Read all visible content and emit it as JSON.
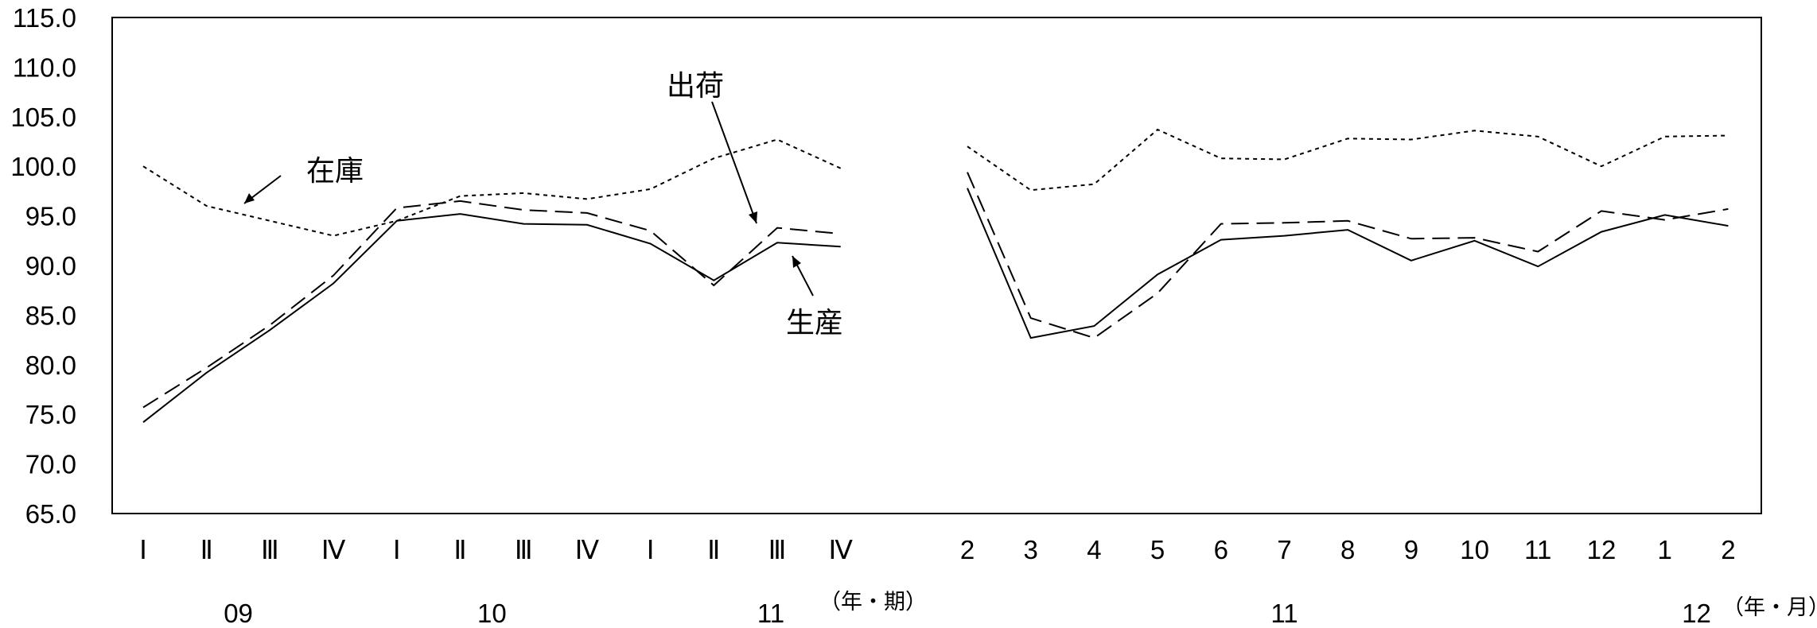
{
  "chart_data": {
    "type": "line",
    "y_ticks": [
      "115.0",
      "110.0",
      "105.0",
      "100.0",
      "95.0",
      "90.0",
      "85.0",
      "80.0",
      "75.0",
      "70.0",
      "65.0"
    ],
    "ylim": [
      65,
      115
    ],
    "grid": false,
    "quarterly": {
      "x": [
        "Ⅰ",
        "Ⅱ",
        "Ⅲ",
        "Ⅳ",
        "Ⅰ",
        "Ⅱ",
        "Ⅲ",
        "Ⅳ",
        "Ⅰ",
        "Ⅱ",
        "Ⅲ",
        "Ⅳ"
      ],
      "year_labels": [
        {
          "label": "09",
          "index": 1.5
        },
        {
          "label": "10",
          "index": 5.5
        },
        {
          "label": "11",
          "index": 9.9
        }
      ],
      "unit": "（年・期）",
      "series": [
        {
          "key": "production",
          "style": "solid",
          "values": [
            74.2,
            79.2,
            83.5,
            88.2,
            94.5,
            95.2,
            94.2,
            94.1,
            92.2,
            88.5,
            92.3,
            91.9
          ]
        },
        {
          "key": "shipments",
          "style": "dashed",
          "values": [
            75.7,
            79.7,
            84.0,
            89.0,
            95.8,
            96.5,
            95.6,
            95.3,
            93.5,
            88.0,
            93.8,
            93.2
          ]
        },
        {
          "key": "inventory",
          "style": "dotted",
          "values": [
            100.0,
            96.0,
            94.5,
            93.0,
            94.5,
            97.0,
            97.3,
            96.7,
            97.7,
            100.8,
            102.7,
            99.8
          ]
        }
      ]
    },
    "monthly": {
      "x": [
        "2",
        "3",
        "4",
        "5",
        "6",
        "7",
        "8",
        "9",
        "10",
        "11",
        "12",
        "1",
        "2"
      ],
      "year_labels": [
        {
          "label": "11",
          "index": 5
        },
        {
          "label": "12",
          "index": 11.5
        }
      ],
      "unit": "（年・月）",
      "series": [
        {
          "key": "production",
          "style": "solid",
          "values": [
            97.8,
            82.7,
            83.9,
            89.1,
            92.6,
            93.0,
            93.6,
            90.5,
            92.5,
            89.9,
            93.4,
            95.1,
            94.0
          ]
        },
        {
          "key": "shipments",
          "style": "dashed",
          "values": [
            99.4,
            84.7,
            82.7,
            87.2,
            94.2,
            94.3,
            94.5,
            92.7,
            92.8,
            91.4,
            95.5,
            94.6,
            95.7
          ]
        },
        {
          "key": "inventory",
          "style": "dotted",
          "values": [
            102.0,
            97.6,
            98.2,
            103.7,
            100.8,
            100.7,
            102.8,
            102.7,
            103.6,
            103.0,
            100.0,
            103.0,
            103.1
          ]
        }
      ]
    },
    "annotations": [
      {
        "label": "在庫",
        "target": "inventory"
      },
      {
        "label": "出荷",
        "target": "shipments"
      },
      {
        "label": "生産",
        "target": "production"
      }
    ]
  }
}
